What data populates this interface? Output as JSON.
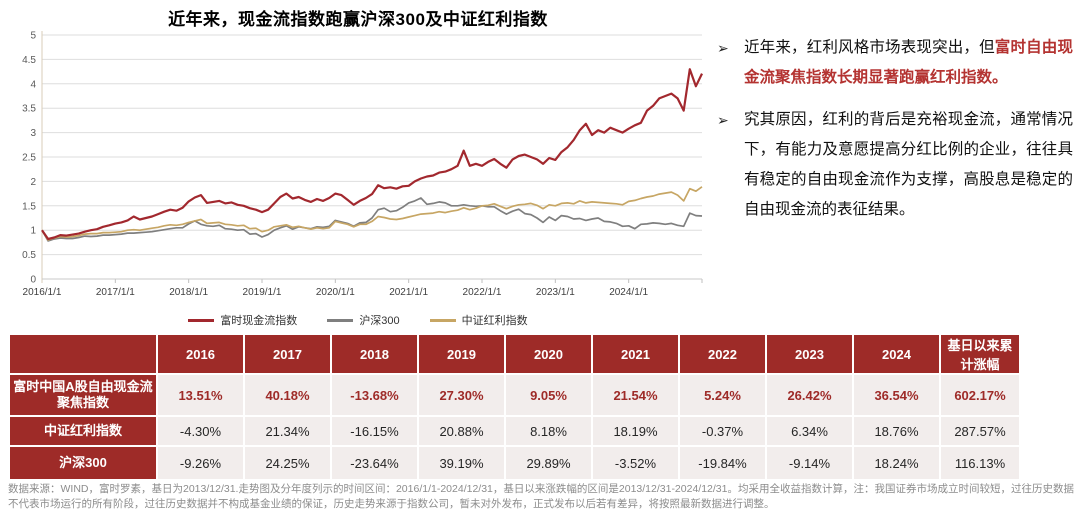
{
  "chart": {
    "title": "近年来，现金流指数跑赢沪深300及中证红利指数"
  },
  "chart_data": {
    "type": "line",
    "title": "近年来，现金流指数跑赢沪深300及中证红利指数",
    "x_range": [
      "2016/1/1",
      "2024/12/31"
    ],
    "x_tick_labels": [
      "2016/1/1",
      "2017/1/1",
      "2018/1/1",
      "2019/1/1",
      "2020/1/1",
      "2021/1/1",
      "2022/1/1",
      "2023/1/1",
      "2024/1/1"
    ],
    "ylim": [
      0,
      5
    ],
    "y_ticks": [
      0,
      0.5,
      1,
      1.5,
      2,
      2.5,
      3,
      3.5,
      4,
      4.5,
      5
    ],
    "grid": true,
    "legend_position": "bottom",
    "x_unit": "monthly samples, normalized to 1 at 2016/1/1",
    "series": [
      {
        "name": "富时现金流指数",
        "color": "#A2282E",
        "values": [
          1.0,
          0.82,
          0.85,
          0.9,
          0.89,
          0.91,
          0.93,
          0.97,
          1.0,
          1.02,
          1.07,
          1.1,
          1.135,
          1.16,
          1.2,
          1.28,
          1.22,
          1.25,
          1.28,
          1.33,
          1.38,
          1.42,
          1.4,
          1.46,
          1.59,
          1.67,
          1.72,
          1.56,
          1.58,
          1.6,
          1.55,
          1.57,
          1.52,
          1.5,
          1.45,
          1.42,
          1.37,
          1.42,
          1.55,
          1.68,
          1.75,
          1.65,
          1.68,
          1.62,
          1.58,
          1.64,
          1.6,
          1.66,
          1.75,
          1.72,
          1.62,
          1.52,
          1.6,
          1.66,
          1.74,
          1.92,
          1.86,
          1.88,
          1.85,
          1.9,
          1.91,
          2.0,
          2.06,
          2.1,
          2.12,
          2.18,
          2.2,
          2.25,
          2.32,
          2.63,
          2.32,
          2.36,
          2.32,
          2.4,
          2.46,
          2.36,
          2.28,
          2.45,
          2.52,
          2.55,
          2.5,
          2.45,
          2.36,
          2.48,
          2.44,
          2.6,
          2.7,
          2.85,
          3.05,
          3.18,
          2.95,
          3.05,
          3.0,
          3.1,
          3.05,
          3.0,
          3.08,
          3.15,
          3.2,
          3.45,
          3.55,
          3.7,
          3.75,
          3.8,
          3.7,
          3.45,
          4.3,
          3.95,
          4.21
        ]
      },
      {
        "name": "沪深300",
        "color": "#7F7F7F",
        "values": [
          1.0,
          0.78,
          0.82,
          0.84,
          0.83,
          0.83,
          0.85,
          0.88,
          0.87,
          0.88,
          0.9,
          0.9,
          0.91,
          0.92,
          0.94,
          0.94,
          0.95,
          0.96,
          0.97,
          0.99,
          1.01,
          1.03,
          1.05,
          1.05,
          1.13,
          1.19,
          1.12,
          1.09,
          1.08,
          1.1,
          1.03,
          1.02,
          1.0,
          1.01,
          0.92,
          0.93,
          0.86,
          0.91,
          1.0,
          1.05,
          1.09,
          1.02,
          1.07,
          1.05,
          1.03,
          1.07,
          1.06,
          1.08,
          1.2,
          1.17,
          1.14,
          1.08,
          1.15,
          1.16,
          1.25,
          1.42,
          1.45,
          1.38,
          1.4,
          1.47,
          1.56,
          1.6,
          1.66,
          1.53,
          1.55,
          1.58,
          1.56,
          1.5,
          1.5,
          1.52,
          1.5,
          1.49,
          1.5,
          1.48,
          1.48,
          1.4,
          1.33,
          1.39,
          1.43,
          1.34,
          1.32,
          1.25,
          1.16,
          1.27,
          1.2,
          1.3,
          1.28,
          1.23,
          1.24,
          1.2,
          1.23,
          1.25,
          1.18,
          1.17,
          1.14,
          1.08,
          1.09,
          1.03,
          1.12,
          1.13,
          1.15,
          1.14,
          1.12,
          1.14,
          1.1,
          1.08,
          1.35,
          1.3,
          1.29
        ]
      },
      {
        "name": "中证红利指数",
        "color": "#C7A664",
        "values": [
          1.0,
          0.8,
          0.84,
          0.87,
          0.86,
          0.87,
          0.89,
          0.92,
          0.93,
          0.93,
          0.95,
          0.95,
          0.96,
          0.97,
          1.0,
          1.01,
          1.0,
          1.02,
          1.04,
          1.06,
          1.09,
          1.11,
          1.1,
          1.12,
          1.16,
          1.19,
          1.22,
          1.14,
          1.15,
          1.16,
          1.12,
          1.11,
          1.09,
          1.1,
          1.03,
          1.04,
          0.97,
          1.0,
          1.07,
          1.09,
          1.11,
          1.06,
          1.08,
          1.05,
          1.02,
          1.05,
          1.03,
          1.05,
          1.18,
          1.15,
          1.12,
          1.07,
          1.12,
          1.12,
          1.18,
          1.28,
          1.26,
          1.23,
          1.22,
          1.24,
          1.27,
          1.3,
          1.33,
          1.34,
          1.35,
          1.38,
          1.36,
          1.39,
          1.41,
          1.46,
          1.42,
          1.45,
          1.5,
          1.51,
          1.54,
          1.49,
          1.44,
          1.49,
          1.52,
          1.53,
          1.55,
          1.51,
          1.44,
          1.52,
          1.5,
          1.55,
          1.56,
          1.54,
          1.6,
          1.56,
          1.58,
          1.57,
          1.56,
          1.55,
          1.54,
          1.52,
          1.59,
          1.61,
          1.65,
          1.68,
          1.7,
          1.74,
          1.76,
          1.78,
          1.72,
          1.6,
          1.85,
          1.8,
          1.89
        ]
      }
    ]
  },
  "bullets": [
    {
      "marker": "➢",
      "prefix": "近年来，红利风格市场表现突出，但",
      "highlight": "富时自由现金流聚焦指数长期显著跑赢红利指数。"
    },
    {
      "marker": "➢",
      "prefix": "究其原因，红利的背后是充裕现金流，通常情况下，有能力及意愿提高分红比例的企业，往往具有稳定的自由现金流作为支撑，高股息是稳定的自由现金流的表征结果。",
      "highlight": ""
    }
  ],
  "table": {
    "header": [
      "",
      "2016",
      "2017",
      "2018",
      "2019",
      "2020",
      "2021",
      "2022",
      "2023",
      "2024",
      "基日以来累计涨幅"
    ],
    "rows": [
      {
        "label": "富时中国A股自由现金流聚焦指数",
        "emphasis": true,
        "values": [
          "13.51%",
          "40.18%",
          "-13.68%",
          "27.30%",
          "9.05%",
          "21.54%",
          "5.24%",
          "26.42%",
          "36.54%",
          "602.17%"
        ]
      },
      {
        "label": "中证红利指数",
        "emphasis": false,
        "values": [
          "-4.30%",
          "21.34%",
          "-16.15%",
          "20.88%",
          "8.18%",
          "18.19%",
          "-0.37%",
          "6.34%",
          "18.76%",
          "287.57%"
        ]
      },
      {
        "label": "沪深300",
        "emphasis": false,
        "values": [
          "-9.26%",
          "24.25%",
          "-23.64%",
          "39.19%",
          "29.89%",
          "-3.52%",
          "-19.84%",
          "-9.14%",
          "18.24%",
          "116.13%"
        ]
      }
    ]
  },
  "footnote": "数据来源：WIND，富时罗素，基日为2013/12/31.走势图及分年度列示的时间区间：2016/1/1-2024/12/31，基日以来涨跌幅的区间是2013/12/31-2024/12/31。均采用全收益指数计算，注：我国证券市场成立时间较短，过往历史数据不代表市场运行的所有阶段，过往历史数据并不构成基金业绩的保证，历史走势来源于指数公司，暂未对外发布，正式发布以后若有差异，将按照最新数据进行调整。",
  "colors": {
    "table_header_bg": "#9E2B28",
    "cell_bg": "#F2EDEC",
    "emphasis_text": "#B43331",
    "line_red": "#A2282E",
    "line_gray": "#7F7F7F",
    "line_gold": "#C7A664"
  }
}
